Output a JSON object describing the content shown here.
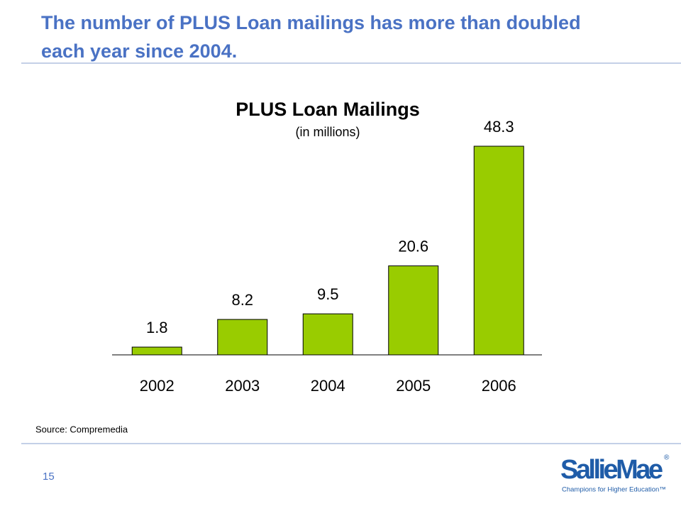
{
  "header": {
    "title": "The number of PLUS Loan mailings has more than doubled each year since 2004."
  },
  "chart_data": {
    "type": "bar",
    "title": "PLUS Loan Mailings",
    "subtitle": "(in millions)",
    "categories": [
      "2002",
      "2003",
      "2004",
      "2005",
      "2006"
    ],
    "values": [
      1.8,
      8.2,
      9.5,
      20.6,
      48.3
    ],
    "color": "#99cc00"
  },
  "source": "Source: Compremedia",
  "footer": {
    "page_number": "15",
    "logo": "SallieMae",
    "logo_mark": "®",
    "tagline": "Champions for Higher Education™"
  }
}
